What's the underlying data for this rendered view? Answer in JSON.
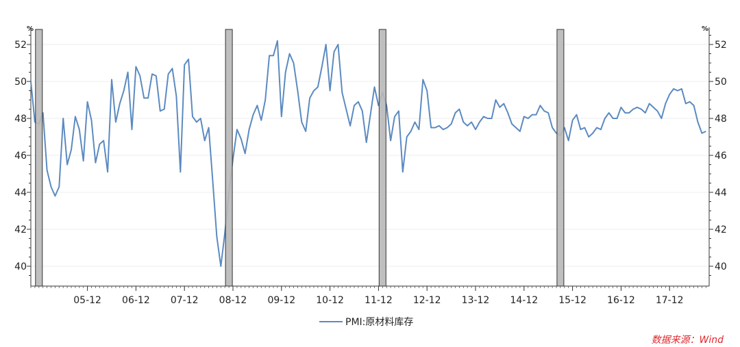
{
  "chart_data": {
    "type": "line",
    "title": "",
    "y_unit_left": "%",
    "y_unit_right": "%",
    "ylim": [
      39,
      53
    ],
    "y_ticks": [
      40,
      42,
      44,
      46,
      48,
      50,
      52
    ],
    "x_tick_labels": [
      "05-12",
      "06-12",
      "07-12",
      "08-12",
      "09-12",
      "10-12",
      "11-12",
      "12-12",
      "13-12",
      "14-12",
      "15-12",
      "16-12",
      "17-12"
    ],
    "grid": "horizontal",
    "legend_position": "bottom",
    "start_month": "2004-10",
    "series": [
      {
        "name": "PMI:原材料库存",
        "color": "#5b8ac0",
        "values": [
          50.0,
          47.8,
          47.7,
          48.3,
          45.2,
          44.3,
          43.8,
          44.3,
          48.0,
          45.5,
          46.3,
          48.1,
          47.4,
          45.7,
          48.9,
          47.9,
          45.6,
          46.6,
          46.8,
          45.1,
          50.1,
          47.8,
          48.8,
          49.5,
          50.5,
          47.4,
          50.8,
          50.3,
          49.1,
          49.1,
          50.4,
          50.3,
          48.4,
          48.5,
          50.4,
          50.7,
          49.2,
          45.1,
          50.9,
          51.2,
          48.1,
          47.8,
          48.0,
          46.8,
          47.5,
          44.6,
          41.6,
          40.0,
          41.8,
          44.0,
          45.8,
          47.4,
          46.9,
          46.1,
          47.4,
          48.2,
          48.7,
          47.9,
          49.0,
          51.4,
          51.4,
          52.2,
          48.1,
          50.5,
          51.5,
          51.0,
          49.5,
          47.8,
          47.3,
          49.1,
          49.5,
          49.7,
          50.8,
          52.0,
          49.5,
          51.6,
          52.0,
          49.4,
          48.5,
          47.6,
          48.7,
          48.9,
          48.4,
          46.7,
          48.2,
          49.7,
          48.7,
          49.4,
          48.7,
          46.8,
          48.1,
          48.4,
          45.1,
          47.0,
          47.3,
          47.8,
          47.4,
          50.1,
          49.5,
          47.5,
          47.5,
          47.6,
          47.4,
          47.5,
          47.7,
          48.3,
          48.5,
          47.8,
          47.6,
          47.8,
          47.4,
          47.8,
          48.1,
          48.0,
          48.0,
          49.0,
          48.6,
          48.8,
          48.3,
          47.7,
          47.5,
          47.3,
          48.1,
          48.0,
          48.2,
          48.2,
          48.7,
          48.4,
          48.3,
          47.5,
          47.2,
          47.1,
          47.5,
          46.8,
          47.9,
          48.2,
          47.4,
          47.5,
          47.0,
          47.2,
          47.5,
          47.4,
          48.0,
          48.3,
          48.0,
          48.0,
          48.6,
          48.3,
          48.3,
          48.5,
          48.6,
          48.5,
          48.3,
          48.8,
          48.6,
          48.4,
          48.0,
          48.8,
          49.3,
          49.6,
          49.5,
          49.6,
          48.8,
          48.9,
          48.7,
          47.8,
          47.2,
          47.3
        ]
      }
    ],
    "highlight_months": [
      "2004-12",
      "2008-11",
      "2012-01",
      "2015-09"
    ],
    "legend_label": "PMI:原材料库存",
    "source_note": "数据来源：Wind"
  },
  "colors": {
    "line": "#5b8ac0",
    "bar_fill": "#b8b8b8",
    "source_text": "#e0282d"
  }
}
